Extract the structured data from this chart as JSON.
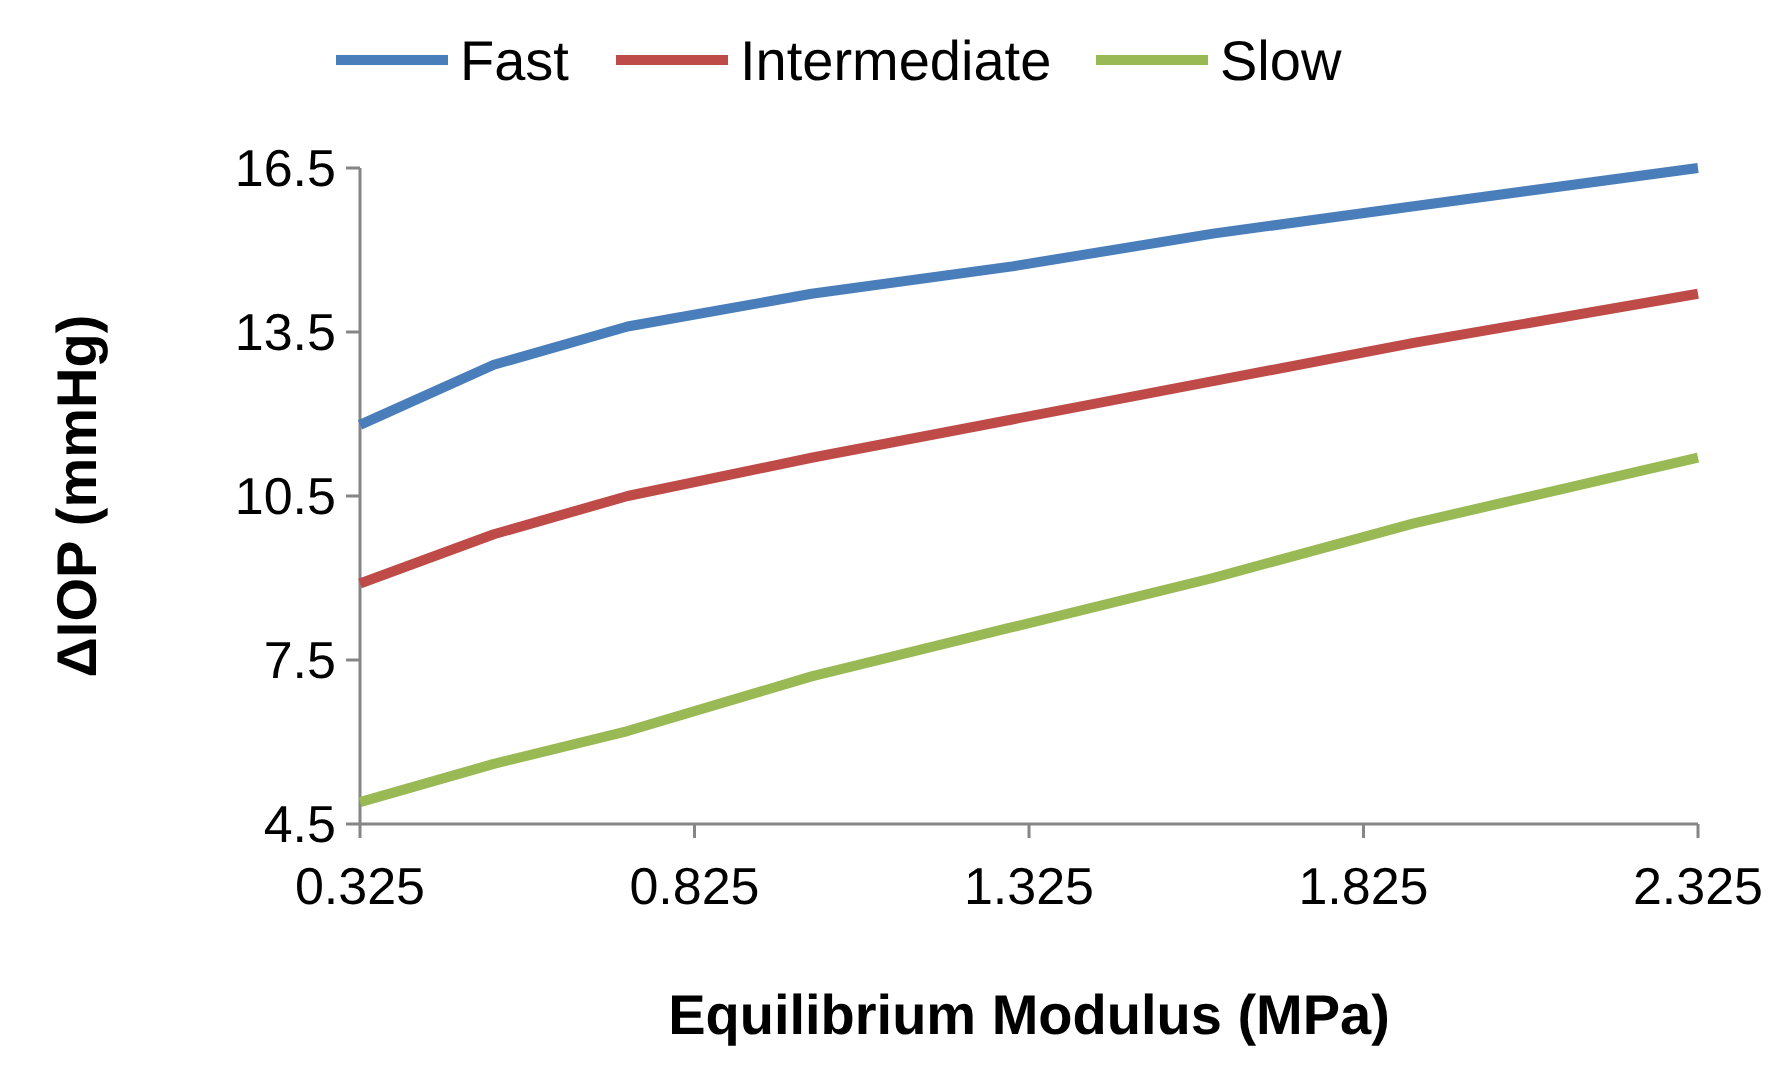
{
  "chart_data": {
    "type": "line",
    "xlabel": "Equilibrium Modulus (MPa)",
    "ylabel": "ΔIOP (mmHg)",
    "x": [
      0.325,
      0.525,
      0.725,
      1.0,
      1.3,
      1.6,
      1.9,
      2.325
    ],
    "xlim": [
      0.325,
      2.325
    ],
    "xticks": [
      0.325,
      0.825,
      1.325,
      1.825,
      2.325
    ],
    "ylim": [
      4.5,
      16.5
    ],
    "yticks": [
      4.5,
      7.5,
      10.5,
      13.5,
      16.5
    ],
    "grid": false,
    "legend": "top",
    "marker": "none",
    "line_style": "solid",
    "series": [
      {
        "name": "Fast",
        "color": "#4a7ebb",
        "values": [
          11.8,
          12.9,
          13.6,
          14.2,
          14.7,
          15.3,
          15.8,
          16.5
        ]
      },
      {
        "name": "Intermediate",
        "color": "#be4b48",
        "values": [
          8.9,
          9.8,
          10.5,
          11.2,
          11.9,
          12.6,
          13.3,
          14.2
        ]
      },
      {
        "name": "Slow",
        "color": "#98b954",
        "values": [
          4.9,
          5.6,
          6.2,
          7.2,
          8.1,
          9.0,
          10.0,
          11.2
        ]
      }
    ]
  }
}
